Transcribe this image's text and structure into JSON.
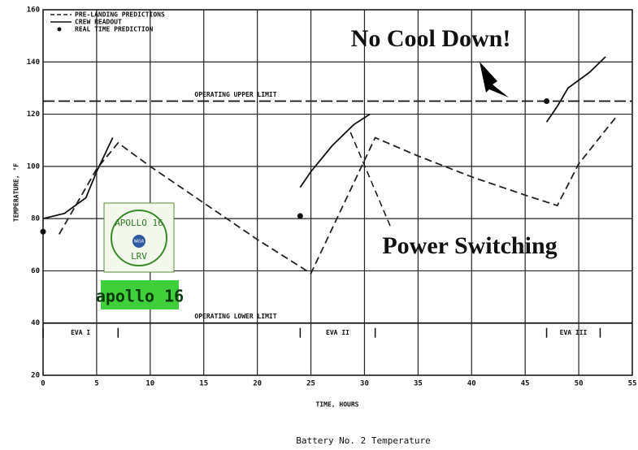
{
  "chart_data": {
    "type": "line",
    "title": "Battery No. 2 Temperature",
    "xlabel": "TIME, HOURS",
    "ylabel": "TEMPERATURE, °F",
    "xlim": [
      0,
      55
    ],
    "xticks": [
      0,
      5,
      10,
      15,
      20,
      25,
      30,
      35,
      40,
      45,
      50,
      55
    ],
    "ylim": [
      20,
      160
    ],
    "yticks": [
      20,
      40,
      60,
      80,
      100,
      120,
      140,
      160
    ],
    "grid": true,
    "legend": "top-left",
    "series": [
      {
        "name": "PRE-LANDING PREDICTIONS",
        "color": "#222",
        "style": "dashed",
        "x": [
          1.5,
          5,
          7,
          10,
          15,
          20,
          25,
          31,
          35,
          40,
          45,
          48,
          50,
          53.5
        ],
        "values": [
          74,
          99,
          109,
          100,
          86,
          72,
          59,
          111,
          104,
          96,
          89,
          85,
          101,
          119
        ]
      },
      {
        "name": "CREW READOUT",
        "color": "#111",
        "style": "solid",
        "x": [
          0,
          2,
          4,
          5,
          6.5,
          15,
          24,
          25,
          27,
          29,
          30.5,
          40,
          47,
          48,
          49,
          51,
          52.5
        ],
        "values": [
          80,
          82,
          88,
          98,
          111,
          null,
          92,
          98,
          108,
          116,
          120,
          null,
          117,
          123,
          130,
          136,
          142
        ]
      },
      {
        "name": "REAL TIME PREDICTION",
        "color": "#111",
        "style": "points",
        "x": [
          0,
          24,
          47
        ],
        "values": [
          75,
          81,
          125
        ]
      }
    ],
    "reference_lines": [
      {
        "label": "OPERATING UPPER LIMIT",
        "value": 125,
        "dashed": true
      },
      {
        "label": "OPERATING LOWER LIMIT",
        "value": 40,
        "dashed": false
      }
    ],
    "eva_periods": [
      {
        "label": "EVA I",
        "start": 0,
        "end": 7
      },
      {
        "label": "EVA II",
        "start": 24,
        "end": 31
      },
      {
        "label": "EVA III",
        "start": 47,
        "end": 52
      }
    ],
    "annotations": [
      "No Cool Down!",
      "Power Switching"
    ],
    "badges": [
      {
        "lines": [
          "APOLLO 16",
          "NASA",
          "LRV"
        ]
      },
      {
        "lines": [
          "apollo 16"
        ]
      }
    ]
  }
}
